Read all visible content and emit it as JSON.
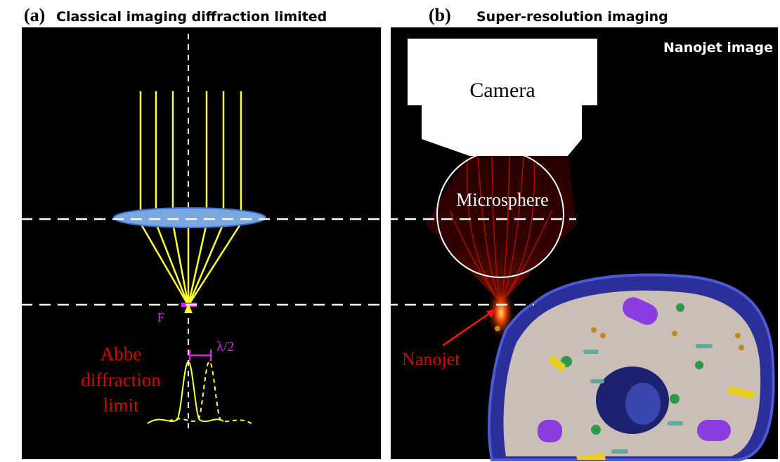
{
  "panel_a": {
    "tag": "(a)",
    "title": "Classical imaging diffraction limited",
    "focus_label": "F",
    "separation_label": "λ/2",
    "abbe_lines": [
      "Abbe",
      "diffraction",
      "limit"
    ]
  },
  "panel_b": {
    "tag": "(b)",
    "title": "Super-resolution imaging",
    "corner_label": "Nanojet image",
    "camera_label": "Camera",
    "microsphere_label": "Microsphere",
    "nanojet_label": "Nanojet"
  }
}
